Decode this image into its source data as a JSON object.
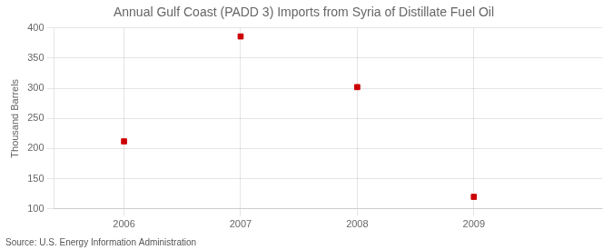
{
  "chart_data": {
    "type": "scatter",
    "title": "Annual Gulf Coast (PADD 3) Imports from Syria of Distillate Fuel Oil",
    "y_label": "Thousand Barrels",
    "annotations": [
      "Source: U.S. Energy Information Administration"
    ],
    "x": [
      2006,
      2007,
      2008,
      2009
    ],
    "values": [
      212,
      386,
      302,
      120
    ],
    "color": "#cc0000",
    "marker": "square",
    "xlim": [
      2005.4,
      2010.1
    ],
    "xticks": [
      2006,
      2007,
      2008,
      2009
    ],
    "ylim": [
      100,
      400
    ],
    "yticks": [
      100,
      150,
      200,
      250,
      300,
      350,
      400
    ],
    "grid": true
  }
}
